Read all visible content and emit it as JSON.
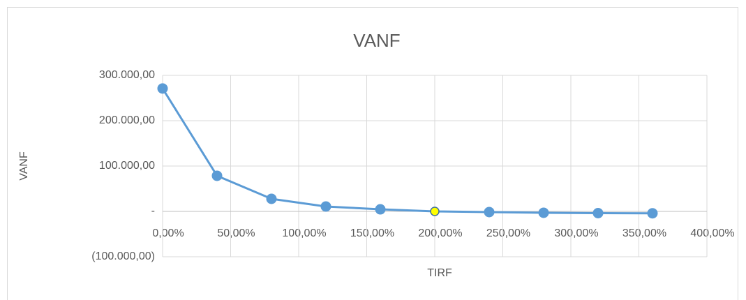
{
  "chart_data": {
    "type": "line",
    "title": "VANF",
    "x_label": "TIRF",
    "y_label": "VANF",
    "series": [
      {
        "name": "VANF",
        "color": "#5b9bd5",
        "x": [
          0,
          40,
          80,
          120,
          160,
          200,
          240,
          280,
          320,
          360
        ],
        "values": [
          271000,
          78500,
          27700,
          10800,
          4600,
          0,
          -1500,
          -3000,
          -3800,
          -4200
        ]
      }
    ],
    "highlight_point": 5,
    "highlight_color": "#ffff00",
    "xlim": [
      0,
      400
    ],
    "xticks": [
      {
        "value": 0,
        "label": "0,00%"
      },
      {
        "value": 50,
        "label": "50,00%"
      },
      {
        "value": 100,
        "label": "100,00%"
      },
      {
        "value": 150,
        "label": "150,00%"
      },
      {
        "value": 200,
        "label": "200,00%"
      },
      {
        "value": 250,
        "label": "250,00%"
      },
      {
        "value": 300,
        "label": "300,00%"
      },
      {
        "value": 350,
        "label": "350,00%"
      },
      {
        "value": 400,
        "label": "400,00%"
      }
    ],
    "ylim": [
      -100000,
      300000
    ],
    "yticks": [
      {
        "value": -100000,
        "label": "(100.000,00)"
      },
      {
        "value": 0,
        "label": "-"
      },
      {
        "value": 100000,
        "label": "100.000,00"
      },
      {
        "value": 200000,
        "label": "200.000,00"
      },
      {
        "value": 300000,
        "label": "300.000,00"
      }
    ],
    "grid": true
  }
}
